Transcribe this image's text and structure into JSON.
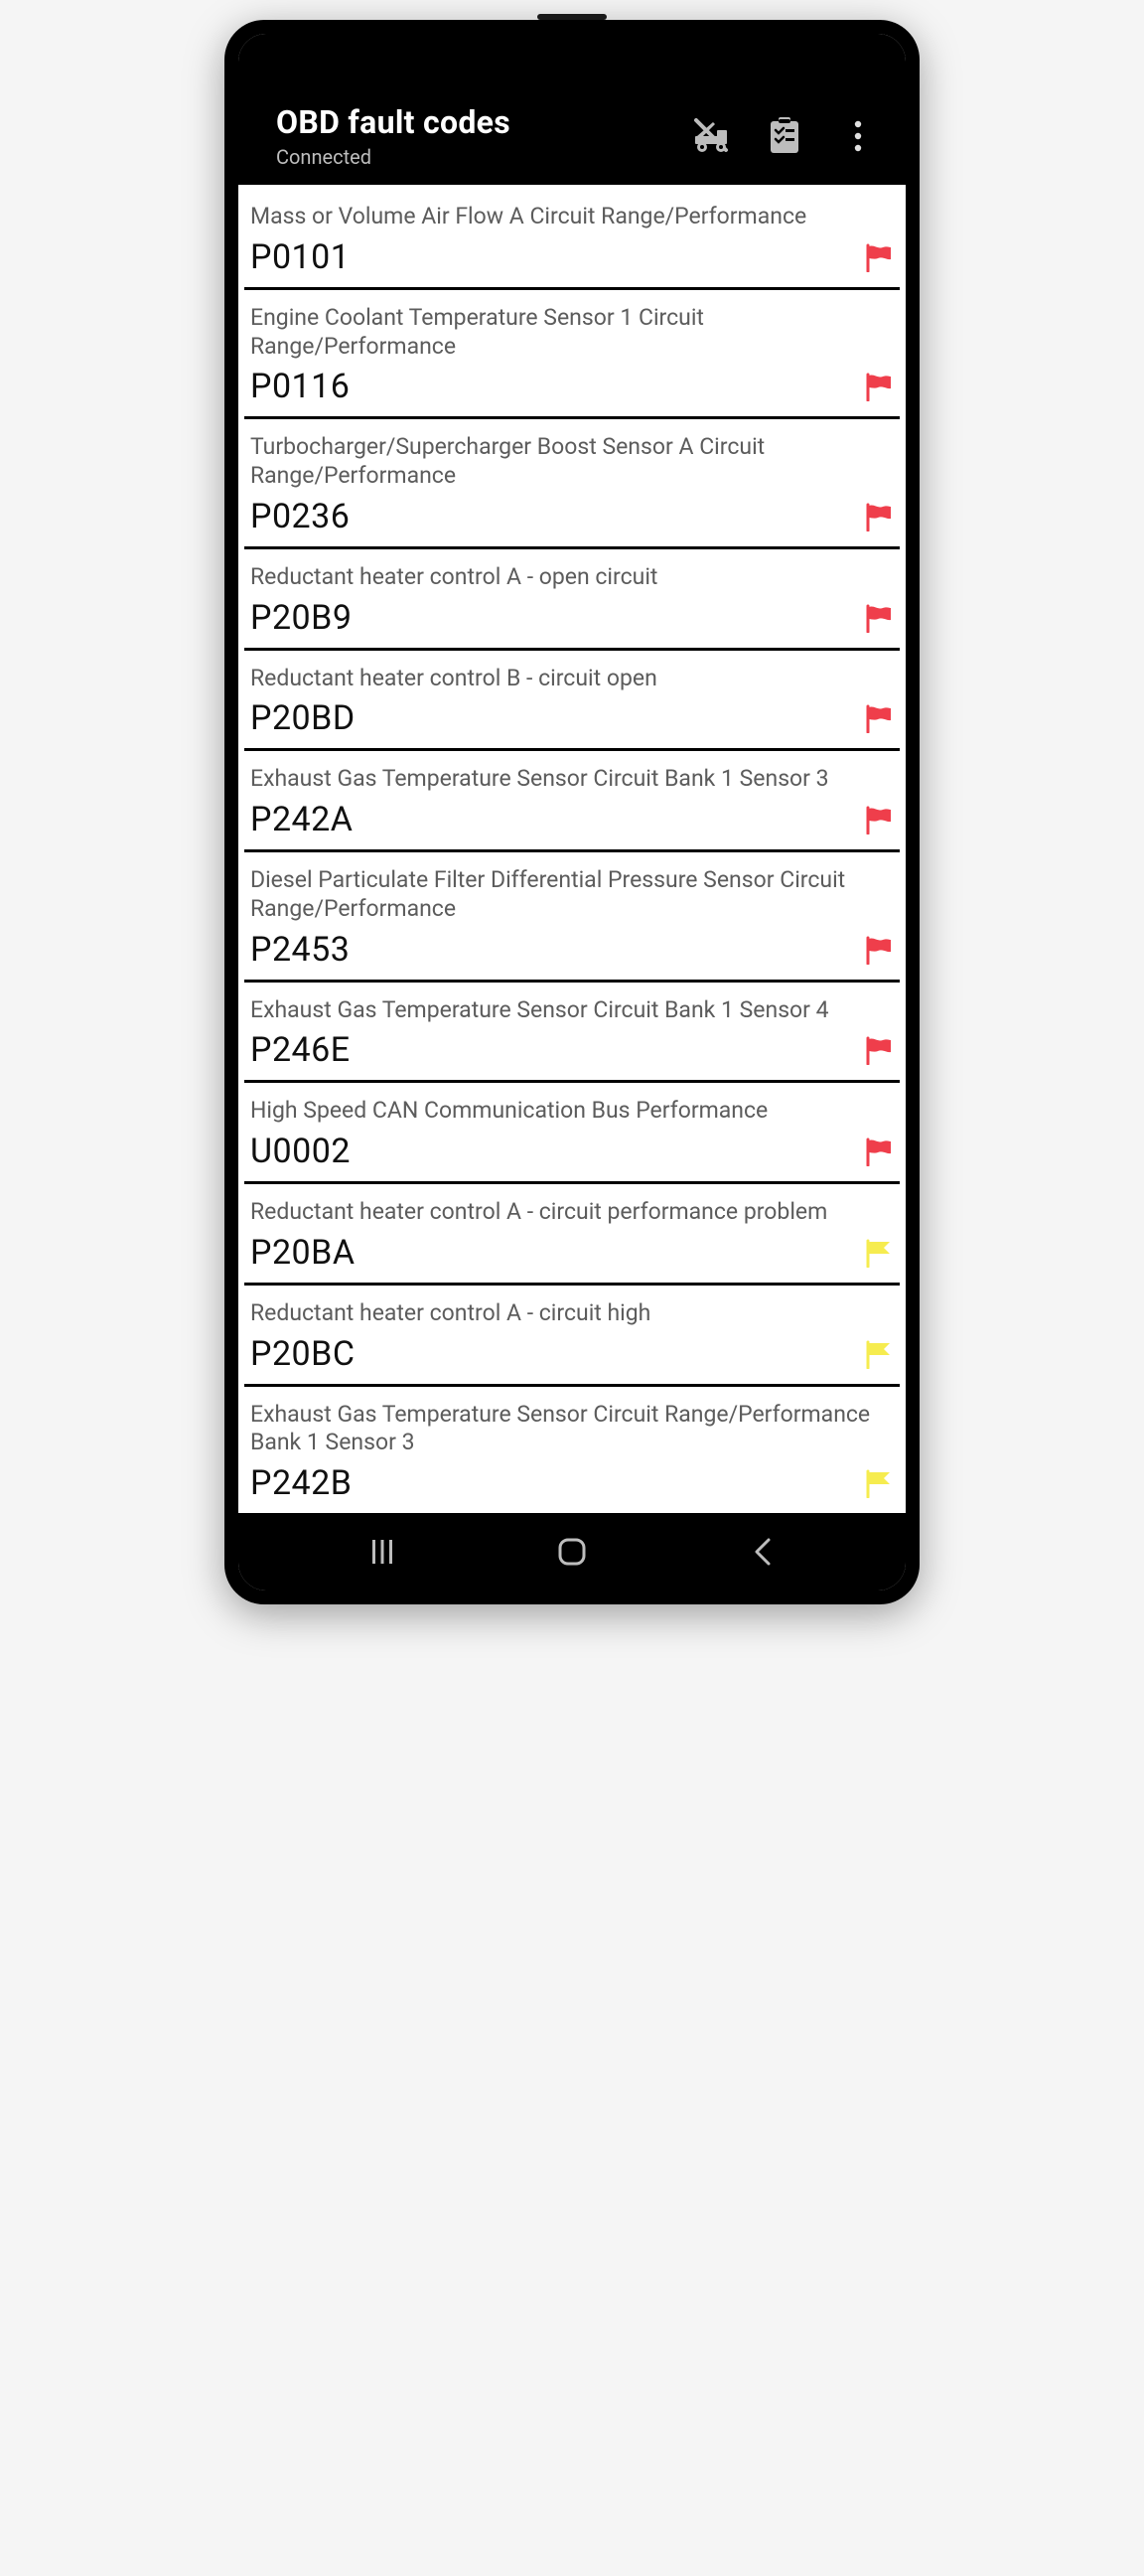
{
  "colors": {
    "black": "#000000",
    "white": "#ffffff",
    "desc_text": "#5c5c5c",
    "code_text": "#101010",
    "subtitle_text": "#bdbdbd",
    "icon_gray": "#bdbdbd",
    "nav_gray": "#bdbdbd",
    "flag_red": "#ef3e4b",
    "flag_yellow": "#f6ec4f"
  },
  "header": {
    "title": "OBD fault codes",
    "subtitle": "Connected"
  },
  "icons": {
    "tow": "tow-truck-off-icon",
    "checklist": "checklist-icon",
    "overflow": "overflow-menu-icon"
  },
  "faults": [
    {
      "desc": "Mass or Volume Air Flow A Circuit Range/Performance",
      "code": "P0101",
      "flag": "red"
    },
    {
      "desc": "Engine Coolant Temperature Sensor 1 Circuit Range/Performance",
      "code": "P0116",
      "flag": "red"
    },
    {
      "desc": "Turbocharger/Supercharger Boost Sensor A Circuit Range/Performance",
      "code": "P0236",
      "flag": "red"
    },
    {
      "desc": "Reductant heater control A - open circuit",
      "code": "P20B9",
      "flag": "red"
    },
    {
      "desc": "Reductant heater control B - circuit open",
      "code": "P20BD",
      "flag": "red"
    },
    {
      "desc": "Exhaust Gas Temperature Sensor Circuit Bank 1 Sensor 3",
      "code": "P242A",
      "flag": "red"
    },
    {
      "desc": "Diesel Particulate Filter Differential Pressure Sensor Circuit Range/Performance",
      "code": "P2453",
      "flag": "red"
    },
    {
      "desc": "Exhaust Gas Temperature Sensor Circuit Bank 1 Sensor 4",
      "code": "P246E",
      "flag": "red"
    },
    {
      "desc": "High Speed CAN Communication Bus Performance",
      "code": "U0002",
      "flag": "red"
    },
    {
      "desc": "Reductant heater control A - circuit performance problem",
      "code": "P20BA",
      "flag": "yellow"
    },
    {
      "desc": "Reductant heater control A - circuit high",
      "code": "P20BC",
      "flag": "yellow"
    },
    {
      "desc": "Exhaust Gas Temperature Sensor Circuit Range/Performance Bank 1 Sensor 3",
      "code": "P242B",
      "flag": "yellow"
    }
  ],
  "typography": {
    "title_size": 32,
    "subtitle_size": 20,
    "desc_size": 23,
    "code_size": 34
  }
}
